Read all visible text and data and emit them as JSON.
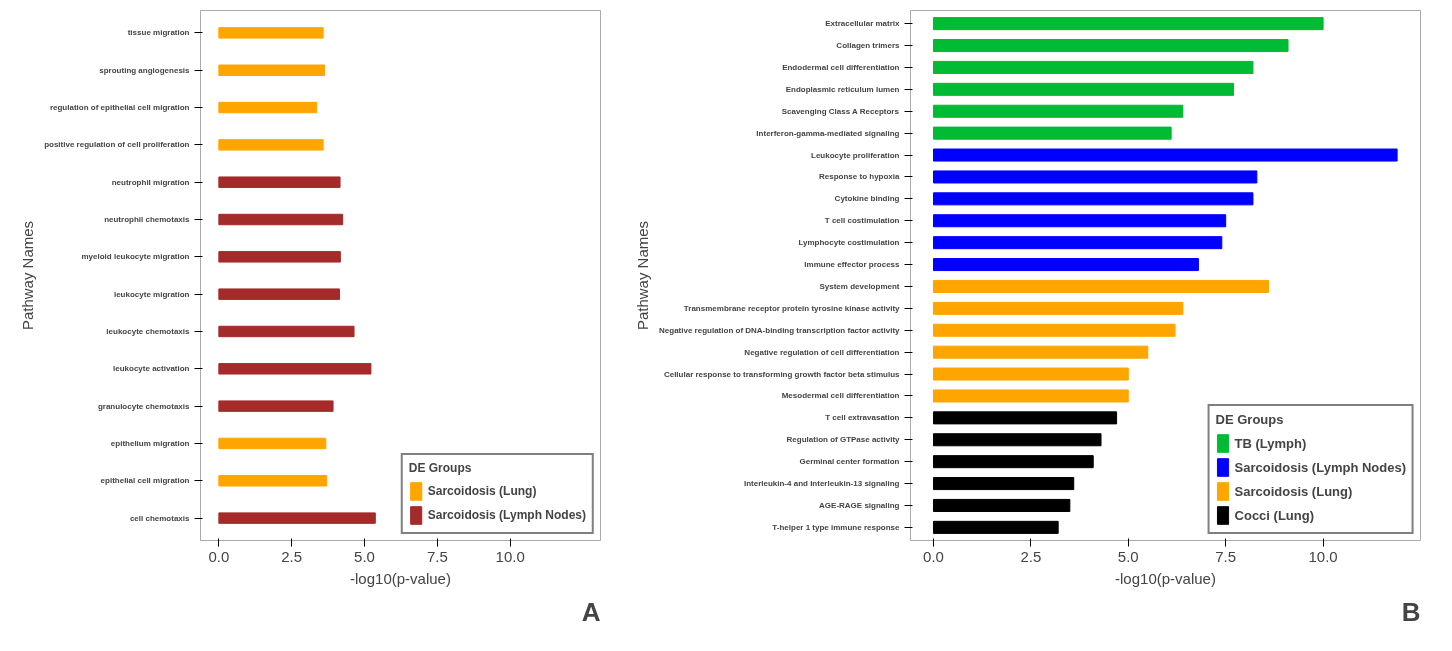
{
  "chart_data": [
    {
      "type": "bar",
      "orientation": "horizontal",
      "ylabel": "Pathway Names",
      "xlabel": "-log10(p-value)",
      "legend_title": "DE Groups",
      "legend": "bottom right",
      "grid": false,
      "xlim": [
        -0.63,
        13.1
      ],
      "xticks": [
        {
          "value": 0,
          "label": "0.0"
        },
        {
          "value": 2.5,
          "label": "2.5"
        },
        {
          "value": 5,
          "label": "5.0"
        },
        {
          "value": 7.5,
          "label": "7.5"
        },
        {
          "value": 10,
          "label": "10.0"
        }
      ],
      "categories": [
        "tissue migration",
        "sprouting angiogenesis",
        "regulation of epithelial cell migration",
        "positive regulation of cell proliferation",
        "neutrophil migration",
        "neutrophil chemotaxis",
        "myeloid leukocyte migration",
        "leukocyte migration",
        "leukocyte chemotaxis",
        "leukocyte activation",
        "granulocyte chemotaxis",
        "epithelium migration",
        "epithelial cell migration",
        "cell chemotaxis"
      ],
      "series": [
        {
          "name": "Sarcoidosis (Lung)",
          "color": "#ffa500",
          "values": [
            3.58,
            3.63,
            3.36,
            3.58,
            null,
            null,
            null,
            null,
            null,
            null,
            null,
            3.67,
            3.7,
            null
          ]
        },
        {
          "name": "Sarcoidosis (Lymph Nodes)",
          "color": "#a52a2a",
          "values": [
            null,
            null,
            null,
            null,
            4.16,
            4.25,
            4.17,
            4.14,
            4.64,
            5.22,
            3.92,
            null,
            null,
            5.37
          ]
        }
      ],
      "annotations": [
        "A"
      ]
    },
    {
      "type": "bar",
      "orientation": "horizontal",
      "ylabel": "Pathway Names",
      "xlabel": "-log10(p-value)",
      "legend_title": "DE Groups",
      "legend": "bottom right",
      "grid": false,
      "xlim": [
        -0.59,
        12.5
      ],
      "xticks": [
        {
          "value": 0,
          "label": "0.0"
        },
        {
          "value": 2.5,
          "label": "2.5"
        },
        {
          "value": 5,
          "label": "5.0"
        },
        {
          "value": 7.5,
          "label": "7.5"
        },
        {
          "value": 10,
          "label": "10.0"
        }
      ],
      "categories": [
        "Extracellular matrix",
        "Collagen trimers",
        "Endodermal cell differentiation",
        "Endoplasmic reticulum lumen",
        "Scavenging Class A Receptors",
        "Interferon-gamma-mediated signaling",
        "Leukocyte proliferation",
        "Response to hypoxia",
        "Cytokine binding",
        "T cell costimulation",
        "Lymphocyte costimulation",
        "Immune effector process",
        "System development",
        "Transmembrane receptor protein tyrosine kinase activity",
        "Negative regulation of DNA-binding transcription factor activity",
        "Negative regulation of cell differentiation",
        "Cellular response to transforming growth factor beta stimulus",
        "Mesodermal cell differentiation",
        "T cell extravasation",
        "Regulation of GTPase activity",
        "Germinal center formation",
        "Interleukin-4 and Interleukin-13 signaling",
        "AGE-RAGE signaling",
        "T-helper 1 type immune response"
      ],
      "series": [
        {
          "name": "TB (Lymph)",
          "color": "#00bb33",
          "values": [
            10.0,
            9.1,
            8.2,
            7.7,
            6.4,
            6.1,
            null,
            null,
            null,
            null,
            null,
            null,
            null,
            null,
            null,
            null,
            null,
            null,
            null,
            null,
            null,
            null,
            null,
            null
          ]
        },
        {
          "name": "Sarcoidosis (Lymph Nodes)",
          "color": "#0000ff",
          "values": [
            null,
            null,
            null,
            null,
            null,
            null,
            11.9,
            8.3,
            8.2,
            7.5,
            7.4,
            6.8,
            null,
            null,
            null,
            null,
            null,
            null,
            null,
            null,
            null,
            null,
            null,
            null
          ]
        },
        {
          "name": "Sarcoidosis (Lung)",
          "color": "#ffa500",
          "values": [
            null,
            null,
            null,
            null,
            null,
            null,
            null,
            null,
            null,
            null,
            null,
            null,
            8.6,
            6.4,
            6.2,
            5.5,
            5.0,
            5.0,
            null,
            null,
            null,
            null,
            null,
            null
          ]
        },
        {
          "name": "Cocci (Lung)",
          "color": "#000000",
          "values": [
            null,
            null,
            null,
            null,
            null,
            null,
            null,
            null,
            null,
            null,
            null,
            null,
            null,
            null,
            null,
            null,
            null,
            null,
            4.7,
            4.3,
            4.1,
            3.6,
            3.5,
            3.2
          ]
        }
      ],
      "annotations": [
        "B"
      ]
    }
  ]
}
